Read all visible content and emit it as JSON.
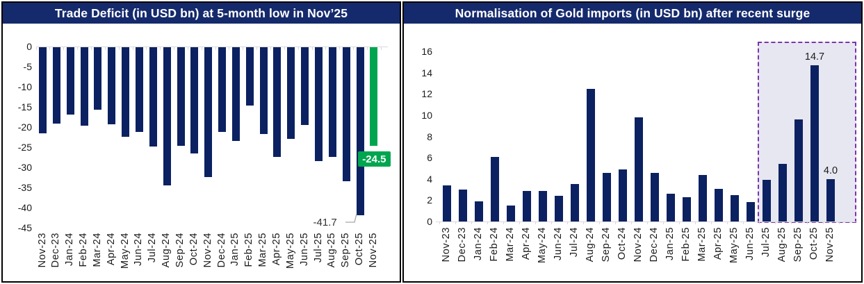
{
  "colors": {
    "title_bg": "#152A6C",
    "bar_navy": "#0B2161",
    "bar_green": "#00A64F",
    "axis_gray": "#D9D9D9",
    "leader_gray": "#A6A6A6",
    "highlight_fill": "#E7E7F1",
    "highlight_border": "#7B35A8",
    "badge_text": "#FFFFFF"
  },
  "chart_data": [
    {
      "id": "trade-deficit-plot",
      "type": "bar",
      "title": "Trade Deficit (in USD bn) at 5-month low in Nov’25",
      "ylabel": "",
      "xlabel": "",
      "ylim": [
        -45,
        0
      ],
      "yticks": [
        0,
        -5,
        -10,
        -15,
        -20,
        -25,
        -30,
        -35,
        -40,
        -45
      ],
      "grid": false,
      "legend": "none",
      "categories": [
        "Nov-23",
        "Dec-23",
        "Jan-24",
        "Feb-24",
        "Mar-24",
        "Apr-24",
        "May-24",
        "Jun-24",
        "Jul-24",
        "Aug-24",
        "Sep-24",
        "Oct-24",
        "Nov-24",
        "Dec-24",
        "Jan-25",
        "Feb-25",
        "Mar-25",
        "Apr-25",
        "May-25",
        "Jun-25",
        "Jul-25",
        "Aug-25",
        "Sep-25",
        "Oct-25",
        "Nov-25"
      ],
      "values": [
        -21.4,
        -18.9,
        -16.7,
        -19.5,
        -15.5,
        -19.2,
        -22.2,
        -21.1,
        -24.7,
        -34.3,
        -24.5,
        -26.3,
        -32.2,
        -21.0,
        -23.3,
        -14.4,
        -21.6,
        -27.3,
        -22.7,
        -19.3,
        -28.2,
        -27.3,
        -33.3,
        -41.7,
        -24.5
      ],
      "last_bar_highlighted": true,
      "annotations": {
        "callout": {
          "index": 23,
          "label": "-41.7"
        },
        "badge": {
          "index": 24,
          "label": "-24.5"
        }
      }
    },
    {
      "id": "gold-imports-plot",
      "type": "bar",
      "title": "Normalisation of Gold imports (in USD bn) after recent surge",
      "ylabel": "",
      "xlabel": "",
      "ylim": [
        0,
        16
      ],
      "yticks": [
        16,
        14,
        12,
        10,
        8,
        6,
        4,
        2,
        0
      ],
      "grid": false,
      "legend": "none",
      "categories": [
        "Nov-23",
        "Dec-23",
        "Jan-24",
        "Feb-24",
        "Mar-24",
        "Apr-24",
        "May-24",
        "Jun-24",
        "Jul-24",
        "Aug-24",
        "Sep-24",
        "Oct-24",
        "Nov-24",
        "Dec-24",
        "Jan-25",
        "Feb-25",
        "Mar-25",
        "Apr-25",
        "May-25",
        "Jun-25",
        "Jul-25",
        "Aug-25",
        "Sep-25",
        "Oct-25",
        "Nov-25"
      ],
      "values": [
        3.4,
        3.0,
        1.9,
        6.1,
        1.5,
        2.9,
        2.9,
        2.4,
        3.5,
        12.5,
        4.6,
        4.9,
        9.8,
        4.6,
        2.6,
        2.3,
        4.4,
        3.1,
        2.5,
        1.8,
        3.9,
        5.4,
        9.6,
        14.7,
        4.0
      ],
      "data_labels": [
        {
          "index": 23,
          "label": "14.7"
        },
        {
          "index": 24,
          "label": "4.0"
        }
      ],
      "highlight": {
        "from_index": 20,
        "to_index": 24
      }
    }
  ]
}
